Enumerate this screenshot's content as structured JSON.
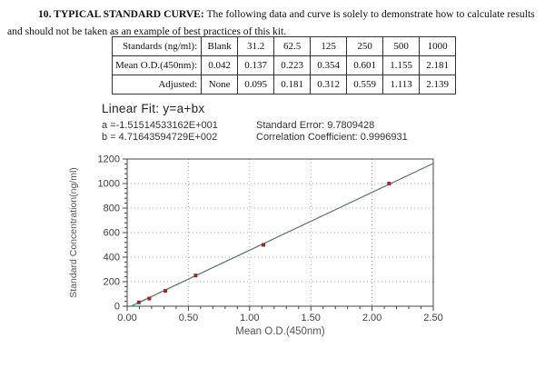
{
  "header": {
    "lead": "10. TYPICAL STANDARD CURVE:",
    "body": " The following data and curve is solely to demonstrate how to calculate results and should not be taken as an example of best practices of this kit."
  },
  "table": {
    "rows": [
      {
        "label": "Standards (ng/ml):",
        "values": [
          "Blank",
          "31.2",
          "62.5",
          "125",
          "250",
          "500",
          "1000"
        ]
      },
      {
        "label": "Mean O.D.(450nm):",
        "values": [
          "0.042",
          "0.137",
          "0.223",
          "0.354",
          "0.601",
          "1.155",
          "2.181"
        ]
      },
      {
        "label": "Adjusted:",
        "values": [
          "None",
          "0.095",
          "0.181",
          "0.312",
          "0.559",
          "1.113",
          "2.139"
        ]
      }
    ]
  },
  "linear_fit": {
    "title": "Linear Fit: y=a+bx",
    "a_line": "a =-1.51514533162E+001",
    "b_line": "b = 4.71643594729E+002",
    "std_error": "Standard Error: 9.7809428",
    "correlation": "Correlation Coefficient: 0.9996931"
  },
  "chart_data": {
    "type": "scatter",
    "title": "",
    "xlabel": "Mean O.D.(450nm)",
    "ylabel": "Standard Concentration(ng/ml)",
    "xlim": [
      0,
      2.5
    ],
    "ylim": [
      0,
      1200
    ],
    "x_ticks": [
      0,
      0.5,
      1.0,
      1.5,
      2.0,
      2.5
    ],
    "x_tick_labels": [
      "0.00",
      "0.50",
      "1.00",
      "1.50",
      "2.00",
      "2.50"
    ],
    "y_ticks": [
      0,
      200,
      400,
      600,
      800,
      1000,
      1200
    ],
    "x_minor_step": 0.1,
    "y_minor_step": 40,
    "grid": true,
    "legend": "none",
    "points": [
      {
        "x": 0.095,
        "y": 31.2
      },
      {
        "x": 0.181,
        "y": 62.5
      },
      {
        "x": 0.312,
        "y": 125
      },
      {
        "x": 0.559,
        "y": 250
      },
      {
        "x": 1.113,
        "y": 500
      },
      {
        "x": 2.139,
        "y": 1000
      }
    ],
    "fit": {
      "a": -15.1514533162,
      "b": 471.643594729,
      "x_start": 0.0321,
      "x_end": 2.5
    },
    "colors": {
      "point": "#8b2e34",
      "line": "#5f7268",
      "line_accent": "#2f9d8a",
      "grid": "#999999",
      "axis": "#444444",
      "tick_label": "#3d3d3d",
      "axis_label": "#555555"
    }
  }
}
